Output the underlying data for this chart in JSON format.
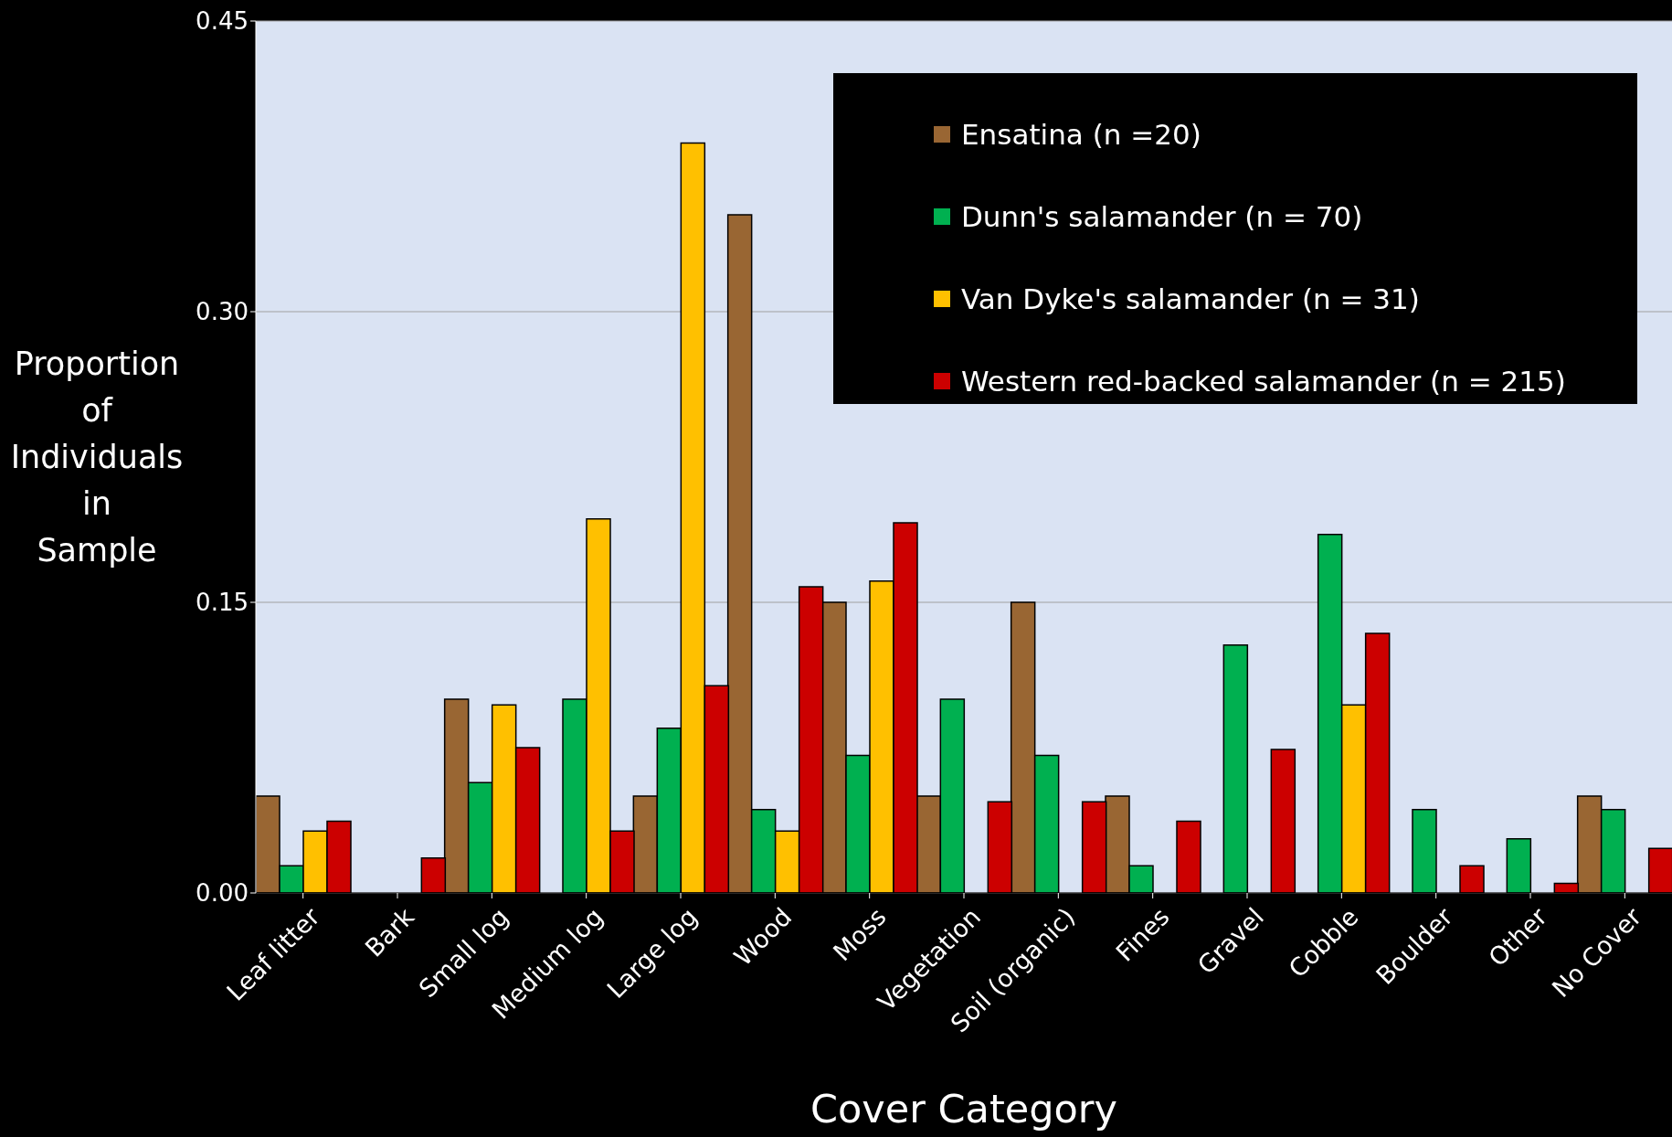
{
  "chart_data": {
    "type": "bar",
    "xlabel": "Cover Category",
    "ylabel": "Proportion of Individuals in Sample",
    "categories": [
      "Leaf litter",
      "Bark",
      "Small log",
      "Medium log",
      "Large log",
      "Wood",
      "Moss",
      "Vegetation",
      "Soil (organic)",
      "Fines",
      "Gravel",
      "Cobble",
      "Boulder",
      "Other",
      "No Cover"
    ],
    "series": [
      {
        "name": "Ensatina (n =20)",
        "color": "#996633",
        "values": [
          0.05,
          0,
          0.1,
          0,
          0.05,
          0.35,
          0.15,
          0.05,
          0.15,
          0.05,
          0,
          0,
          0,
          0,
          0.05
        ]
      },
      {
        "name": "Dunn's salamander (n = 70)",
        "color": "#00b050",
        "values": [
          0.014,
          0,
          0.057,
          0.1,
          0.085,
          0.043,
          0.071,
          0.1,
          0.071,
          0.014,
          0.128,
          0.185,
          0.043,
          0.028,
          0.043
        ]
      },
      {
        "name": "Van Dyke's salamander (n = 31)",
        "color": "#ffc000",
        "values": [
          0.032,
          0,
          0.097,
          0.193,
          0.387,
          0.032,
          0.161,
          0,
          0,
          0,
          0,
          0.097,
          0,
          0,
          0
        ]
      },
      {
        "name": "Western red-backed salamander (n = 215)",
        "color": "#cc0000",
        "values": [
          0.037,
          0.018,
          0.075,
          0.032,
          0.107,
          0.158,
          0.191,
          0.047,
          0.047,
          0.037,
          0.074,
          0.134,
          0.014,
          0.005,
          0.023
        ]
      }
    ],
    "ylim": [
      0,
      0.45
    ],
    "yticks": [
      {
        "value": 0,
        "label": "0.00"
      },
      {
        "value": 0.15,
        "label": "0.15"
      },
      {
        "value": 0.3,
        "label": "0.30"
      },
      {
        "value": 0.45,
        "label": "0.45"
      }
    ],
    "grid": "y",
    "legend": "top right"
  }
}
